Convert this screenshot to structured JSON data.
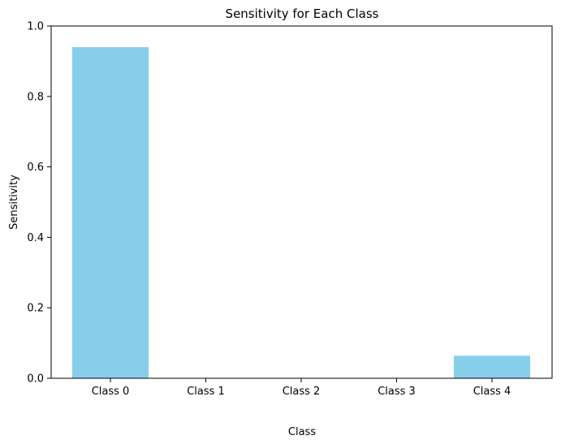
{
  "chart_data": {
    "type": "bar",
    "title": "Sensitivity for Each Class",
    "xlabel": "Class",
    "ylabel": "Sensitivity",
    "categories": [
      "Class 0",
      "Class 1",
      "Class 2",
      "Class 3",
      "Class 4"
    ],
    "values": [
      0.94,
      0.0,
      0.0,
      0.0,
      0.064
    ],
    "ylim": [
      0,
      1.0
    ],
    "yticks": [
      "0.0",
      "0.2",
      "0.4",
      "0.6",
      "0.8",
      "1.0"
    ],
    "grid": false,
    "legend": "none",
    "colors": {
      "bar": "#87ceeb",
      "axis": "#000000",
      "background": "#ffffff"
    }
  }
}
